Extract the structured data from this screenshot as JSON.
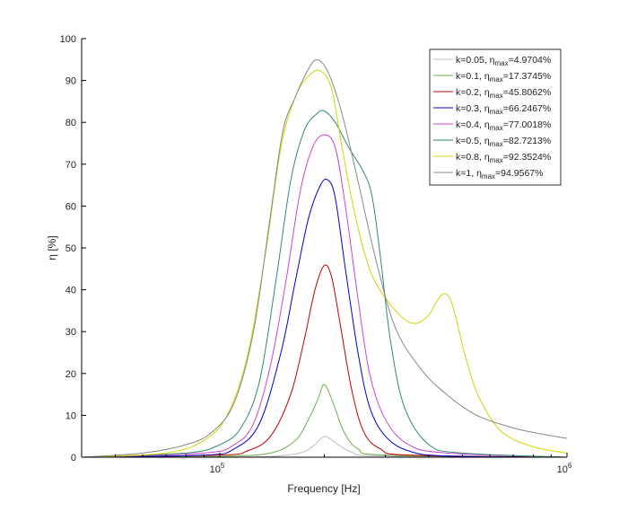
{
  "chart_data": {
    "type": "line",
    "xlabel": "Frequency [Hz]",
    "ylabel": "η [%]",
    "xscale": "log",
    "xlim": [
      40000,
      1000000
    ],
    "ylim": [
      0,
      100
    ],
    "x_ticks": [
      {
        "value": 100000,
        "base": "10",
        "exp": "5"
      },
      {
        "value": 1000000,
        "base": "10",
        "exp": "6"
      }
    ],
    "y_ticks": [
      "0",
      "10",
      "20",
      "30",
      "40",
      "50",
      "60",
      "70",
      "80",
      "90",
      "100"
    ],
    "y_tick_values": [
      0,
      10,
      20,
      30,
      40,
      50,
      60,
      70,
      80,
      90,
      100
    ],
    "grid": false,
    "legend": "top-right",
    "series": [
      {
        "name": "k=0.05",
        "eta_text": "η",
        "sub_text": "max",
        "value_text": "=4.9704%",
        "color": "#bdbdbd",
        "points": [
          [
            40000,
            0
          ],
          [
            100000,
            0
          ],
          [
            140000,
            0.2
          ],
          [
            170000,
            1
          ],
          [
            185000,
            2.5
          ],
          [
            200000,
            4.97
          ],
          [
            215000,
            3.5
          ],
          [
            240000,
            1.2
          ],
          [
            290000,
            0.3
          ],
          [
            1000000,
            0
          ]
        ]
      },
      {
        "name": "k=0.1",
        "eta_text": "η",
        "sub_text": "max",
        "value_text": "=17.3745%",
        "color": "#70ad47",
        "points": [
          [
            40000,
            0
          ],
          [
            100000,
            0.2
          ],
          [
            140000,
            1
          ],
          [
            165000,
            4
          ],
          [
            180000,
            9
          ],
          [
            192000,
            14
          ],
          [
            200000,
            17.37
          ],
          [
            212000,
            13
          ],
          [
            228000,
            6
          ],
          [
            250000,
            2
          ],
          [
            300000,
            0.5
          ],
          [
            1000000,
            0
          ]
        ]
      },
      {
        "name": "k=0.2",
        "eta_text": "η",
        "sub_text": "max",
        "value_text": "=45.8062%",
        "color": "#c00000",
        "points": [
          [
            40000,
            0
          ],
          [
            100000,
            0.5
          ],
          [
            120000,
            1.5
          ],
          [
            140000,
            5
          ],
          [
            160000,
            15
          ],
          [
            175000,
            28
          ],
          [
            188000,
            40
          ],
          [
            200000,
            45.8
          ],
          [
            210000,
            43
          ],
          [
            222000,
            32
          ],
          [
            240000,
            16
          ],
          [
            260000,
            6
          ],
          [
            290000,
            2
          ],
          [
            350000,
            0.5
          ],
          [
            1000000,
            0
          ]
        ]
      },
      {
        "name": "k=0.3",
        "eta_text": "η",
        "sub_text": "max",
        "value_text": "=66.2467%",
        "color": "#0000cc",
        "points": [
          [
            40000,
            0
          ],
          [
            90000,
            0.5
          ],
          [
            110000,
            2
          ],
          [
            130000,
            8
          ],
          [
            150000,
            25
          ],
          [
            165000,
            42
          ],
          [
            180000,
            57
          ],
          [
            195000,
            65
          ],
          [
            205000,
            66.2
          ],
          [
            215000,
            62
          ],
          [
            230000,
            45
          ],
          [
            250000,
            25
          ],
          [
            270000,
            12
          ],
          [
            300000,
            5
          ],
          [
            350000,
            1.5
          ],
          [
            450000,
            0.3
          ],
          [
            1000000,
            0
          ]
        ]
      },
      {
        "name": "k=0.4",
        "eta_text": "η",
        "sub_text": "max",
        "value_text": "=77.0018%",
        "color": "#cc44cc",
        "points": [
          [
            40000,
            0
          ],
          [
            90000,
            1
          ],
          [
            110000,
            3
          ],
          [
            125000,
            8
          ],
          [
            140000,
            22
          ],
          [
            155000,
            42
          ],
          [
            170000,
            63
          ],
          [
            185000,
            74
          ],
          [
            200000,
            77
          ],
          [
            215000,
            74
          ],
          [
            230000,
            60
          ],
          [
            250000,
            38
          ],
          [
            270000,
            20
          ],
          [
            300000,
            9
          ],
          [
            350000,
            3
          ],
          [
            450000,
            1
          ],
          [
            1000000,
            0
          ]
        ]
      },
      {
        "name": "k=0.5",
        "eta_text": "η",
        "sub_text": "max",
        "value_text": "=82.7213%",
        "color": "#2e8b74",
        "points": [
          [
            40000,
            0
          ],
          [
            80000,
            1
          ],
          [
            100000,
            3
          ],
          [
            115000,
            7
          ],
          [
            130000,
            18
          ],
          [
            145000,
            42
          ],
          [
            160000,
            66
          ],
          [
            175000,
            78
          ],
          [
            190000,
            82
          ],
          [
            200000,
            82.7
          ],
          [
            215000,
            80
          ],
          [
            235000,
            74
          ],
          [
            260000,
            68
          ],
          [
            275000,
            62
          ],
          [
            290000,
            48
          ],
          [
            310000,
            28
          ],
          [
            340000,
            12
          ],
          [
            400000,
            3
          ],
          [
            500000,
            1
          ],
          [
            1000000,
            0
          ]
        ]
      },
      {
        "name": "k=0.8",
        "eta_text": "η",
        "sub_text": "max",
        "value_text": "=92.3524%",
        "color": "#d4d400",
        "points": [
          [
            40000,
            0
          ],
          [
            70000,
            1
          ],
          [
            90000,
            4
          ],
          [
            105000,
            10
          ],
          [
            120000,
            24
          ],
          [
            135000,
            48
          ],
          [
            150000,
            74
          ],
          [
            165000,
            86
          ],
          [
            180000,
            91
          ],
          [
            195000,
            92.3
          ],
          [
            210000,
            88
          ],
          [
            225000,
            74
          ],
          [
            245000,
            58
          ],
          [
            270000,
            45
          ],
          [
            300000,
            38
          ],
          [
            340000,
            33
          ],
          [
            370000,
            32
          ],
          [
            400000,
            34
          ],
          [
            420000,
            37
          ],
          [
            440000,
            39
          ],
          [
            460000,
            38
          ],
          [
            480000,
            33
          ],
          [
            510000,
            24
          ],
          [
            560000,
            14
          ],
          [
            650000,
            6
          ],
          [
            800000,
            2.5
          ],
          [
            1000000,
            1
          ]
        ]
      },
      {
        "name": "k=1",
        "eta_text": "η",
        "sub_text": "max",
        "value_text": "=94.9567%",
        "color": "#888888",
        "points": [
          [
            40000,
            0
          ],
          [
            60000,
            1
          ],
          [
            80000,
            3
          ],
          [
            95000,
            6
          ],
          [
            110000,
            13
          ],
          [
            125000,
            30
          ],
          [
            140000,
            58
          ],
          [
            152000,
            78
          ],
          [
            165000,
            86
          ],
          [
            178000,
            92
          ],
          [
            190000,
            94.96
          ],
          [
            205000,
            92
          ],
          [
            225000,
            82
          ],
          [
            250000,
            66
          ],
          [
            280000,
            48
          ],
          [
            320000,
            31
          ],
          [
            380000,
            21
          ],
          [
            450000,
            15
          ],
          [
            550000,
            10
          ],
          [
            700000,
            7
          ],
          [
            850000,
            5.5
          ],
          [
            1000000,
            4.5
          ]
        ]
      }
    ]
  }
}
